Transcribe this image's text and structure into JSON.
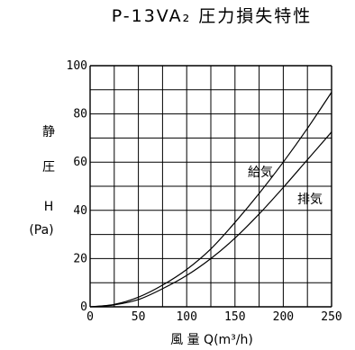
{
  "chart_data": {
    "type": "line",
    "title": "P-13VA₂ 圧力損失特性",
    "ylabel_lines": [
      "静",
      "圧",
      "H",
      "(Pa)"
    ],
    "xlabel": "風 量 Q(m³/h)",
    "xlim": [
      0,
      250
    ],
    "ylim": [
      0,
      100
    ],
    "x_ticks": [
      "0",
      "50",
      "100",
      "150",
      "200",
      "250"
    ],
    "y_ticks": [
      "0",
      "20",
      "40",
      "60",
      "80",
      "100"
    ],
    "grid": true,
    "series": [
      {
        "name": "給気",
        "x": [
          0,
          25,
          50,
          75,
          100,
          125,
          150,
          175,
          200,
          225,
          250
        ],
        "values": [
          0,
          1,
          4,
          9,
          15.5,
          24,
          35,
          47,
          60,
          74,
          89
        ]
      },
      {
        "name": "排気",
        "x": [
          0,
          25,
          50,
          75,
          100,
          125,
          150,
          175,
          200,
          225,
          250
        ],
        "values": [
          0,
          0.8,
          3,
          7.5,
          13,
          20,
          28.5,
          38.5,
          49.5,
          61,
          72.5
        ]
      }
    ]
  }
}
